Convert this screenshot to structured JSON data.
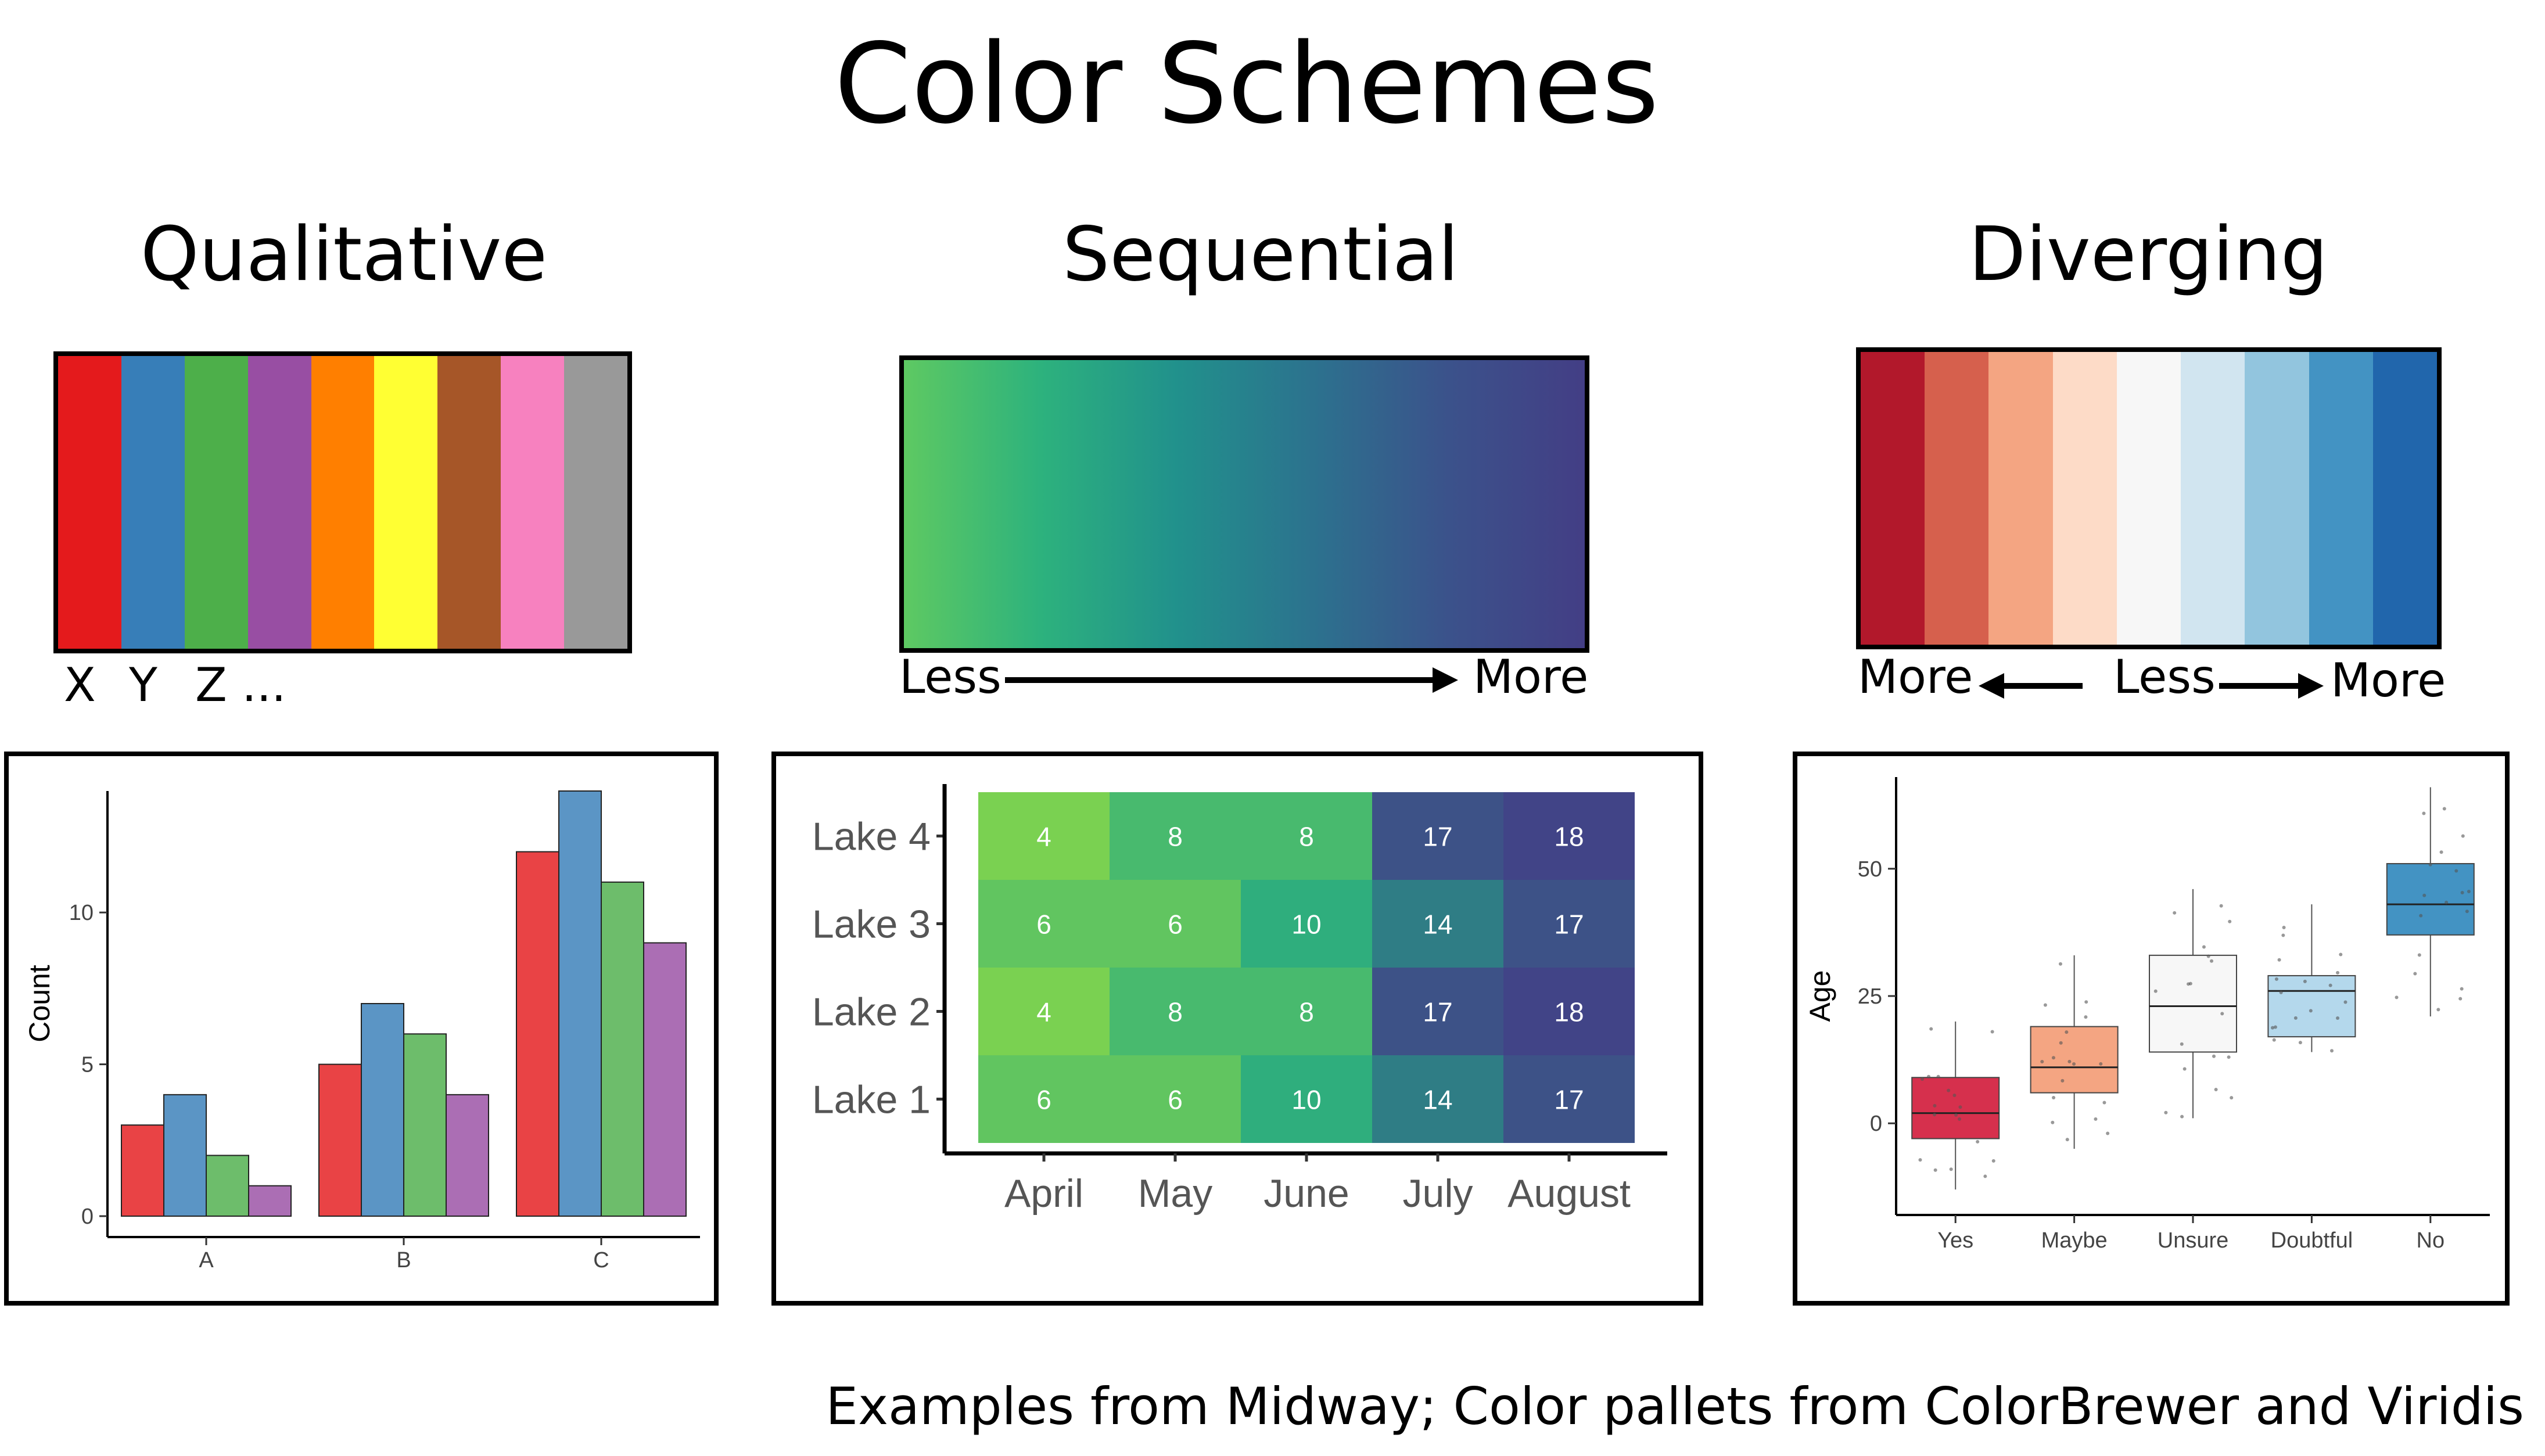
{
  "title": "Color Schemes",
  "footer": "Examples from Midway; Color pallets from ColorBrewer and Viridis",
  "qualitative": {
    "title": "Qualitative",
    "colors": [
      "#e41a1c",
      "#377eb8",
      "#4daf4a",
      "#984ea3",
      "#ff7f00",
      "#ffff33",
      "#a65628",
      "#f781bf",
      "#999999"
    ],
    "labels": [
      "X",
      "Y",
      "Z ..."
    ]
  },
  "sequential": {
    "title": "Sequential",
    "gradient_colors": [
      "#5ec962",
      "#2db27d",
      "#21918c",
      "#2c728e",
      "#3b528b",
      "#433e85"
    ],
    "label_left": "Less",
    "label_right": "More"
  },
  "diverging": {
    "title": "Diverging",
    "colors": [
      "#b2182b",
      "#d6604d",
      "#f4a582",
      "#fddbc7",
      "#f7f7f7",
      "#d1e5f0",
      "#92c5de",
      "#4393c3",
      "#2166ac"
    ],
    "label_left": "More",
    "label_center": "Less",
    "label_right": "More"
  },
  "chart_data": [
    {
      "type": "bar",
      "categories": [
        "A",
        "B",
        "C"
      ],
      "series": [
        {
          "values": [
            3,
            5,
            12
          ],
          "color": "#e41a1c"
        },
        {
          "values": [
            4,
            7,
            14
          ],
          "color": "#377eb8"
        },
        {
          "values": [
            2,
            6,
            11
          ],
          "color": "#4daf4a"
        },
        {
          "values": [
            1,
            4,
            9
          ],
          "color": "#984ea3"
        }
      ],
      "ylabel": "Count",
      "yticks": [
        0,
        5,
        10
      ],
      "ylim": [
        0,
        14
      ]
    },
    {
      "type": "heatmap",
      "x": [
        "April",
        "May",
        "June",
        "July",
        "August"
      ],
      "y": [
        "Lake 1",
        "Lake 2",
        "Lake 3",
        "Lake 4"
      ],
      "values": [
        [
          6,
          6,
          10,
          14,
          17
        ],
        [
          4,
          8,
          8,
          17,
          18
        ],
        [
          6,
          6,
          10,
          14,
          17
        ],
        [
          4,
          8,
          8,
          17,
          18
        ]
      ],
      "colorscale": [
        "#7ad151",
        "#22a884",
        "#414487"
      ],
      "vmin": 4,
      "vmax": 18
    },
    {
      "type": "box",
      "categories": [
        "Yes",
        "Maybe",
        "Unsure",
        "Doubtful",
        "No"
      ],
      "colors": [
        "#d6304d",
        "#f4a582",
        "#f7f7f7",
        "#b4d8ec",
        "#4393c3"
      ],
      "boxes": [
        {
          "min": -13,
          "q1": -3,
          "median": 2,
          "q3": 9,
          "max": 20
        },
        {
          "min": -5,
          "q1": 6,
          "median": 11,
          "q3": 19,
          "max": 33
        },
        {
          "min": 1,
          "q1": 14,
          "median": 23,
          "q3": 33,
          "max": 46
        },
        {
          "min": 14,
          "q1": 17,
          "median": 26,
          "q3": 29,
          "max": 43
        },
        {
          "min": 21,
          "q1": 37,
          "median": 43,
          "q3": 51,
          "max": 66
        }
      ],
      "ylabel": "Age",
      "yticks": [
        0,
        25,
        50
      ],
      "ylim": [
        -18,
        68
      ]
    }
  ]
}
